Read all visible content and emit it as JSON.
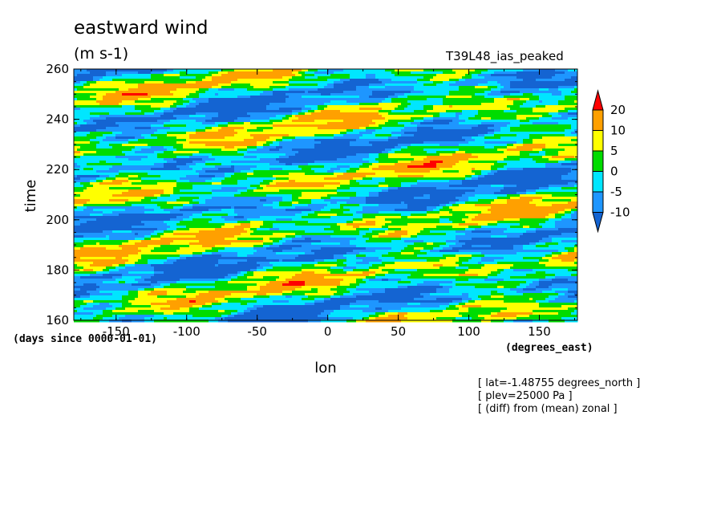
{
  "chart_data": {
    "type": "heatmap",
    "title": "eastward wind",
    "units": "(m s-1)",
    "run_label": "T39L48_ias_peaked",
    "xlabel": "lon",
    "ylabel": "time",
    "x_unit": "(degrees_east)",
    "y_unit": "(days since 0000-01-01)",
    "xlim": [
      -180,
      177
    ],
    "ylim": [
      160,
      260
    ],
    "x_ticks": [
      -150,
      -100,
      -50,
      0,
      50,
      100,
      150
    ],
    "y_ticks": [
      160,
      180,
      200,
      220,
      240,
      260
    ],
    "x_tick_labels": [
      "-150",
      "-100",
      "-50",
      "0",
      "50",
      "100",
      "150"
    ],
    "y_tick_labels": [
      "160",
      "180",
      "200",
      "220",
      "240",
      "260"
    ],
    "levels": [
      -10,
      -5,
      0,
      5,
      10,
      20
    ],
    "level_labels": [
      "20",
      "10",
      "5",
      "0",
      "-5",
      "-10"
    ],
    "colors": [
      "#1464d2",
      "#1e96ff",
      "#00e6ff",
      "#00dc00",
      "#ffff00",
      "#ffa000",
      "#ff0000"
    ],
    "notes": [
      "[ lat=-1.48755 degrees_north ]",
      "[ plev=25000 Pa ]",
      "[ (diff) from (mean) zonal ]"
    ]
  }
}
